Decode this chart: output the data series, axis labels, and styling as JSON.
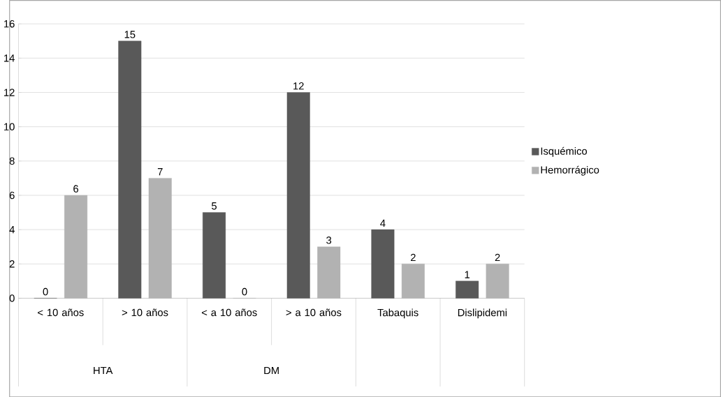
{
  "chart_data": {
    "type": "bar",
    "categories": [
      "< 10 años",
      "> 10 años",
      "< a 10 años",
      "> a 10 años",
      "Tabaquis",
      "Dislipidemi"
    ],
    "series": [
      {
        "name": "Isquémico",
        "color": "#595959",
        "values": [
          0,
          15,
          5,
          12,
          4,
          1
        ]
      },
      {
        "name": "Hemorrágico",
        "color": "#b2b2b2",
        "values": [
          6,
          7,
          0,
          3,
          2,
          2
        ]
      }
    ],
    "annotations": [
      "HTA",
      "DM"
    ],
    "ylim": [
      0,
      16
    ],
    "yticks": [
      0,
      2,
      4,
      6,
      8,
      10,
      12,
      14,
      16
    ],
    "grid": "y",
    "legend": "right",
    "data_labels": true
  }
}
